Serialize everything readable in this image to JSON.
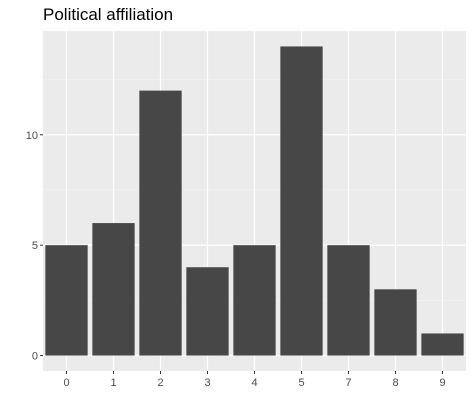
{
  "chart_data": {
    "type": "bar",
    "title": "Political affiliation",
    "xlabel": "",
    "ylabel": "",
    "categories": [
      "0",
      "1",
      "2",
      "3",
      "4",
      "5",
      "7",
      "8",
      "9"
    ],
    "values": [
      5,
      6,
      12,
      4,
      5,
      14,
      5,
      3,
      1
    ],
    "yticks": [
      0,
      5,
      10
    ],
    "ylim": [
      -0.7,
      14.7
    ],
    "grid": true,
    "colors": {
      "bar": "#474747",
      "panel": "#ebebeb",
      "grid_major": "#ffffff",
      "grid_minor": "#f4f4f4",
      "tick_label": "#4d4d4d",
      "title": "#000000"
    }
  }
}
